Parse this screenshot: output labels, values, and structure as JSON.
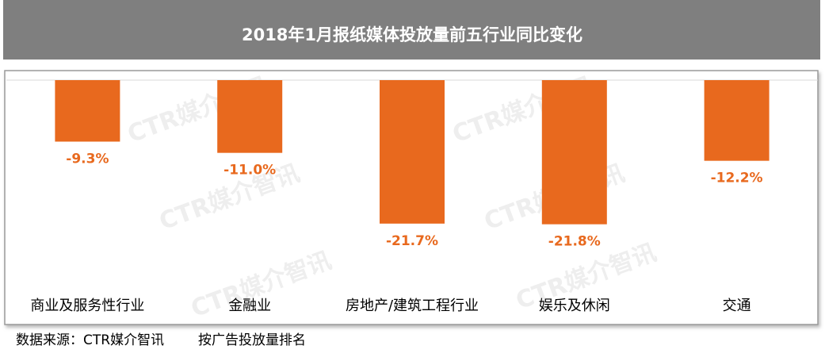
{
  "chart_data": {
    "type": "bar",
    "title": "2018年1月报纸媒体投放量前五行业同比变化",
    "categories": [
      "商业及服务性行业",
      "金融业",
      "房地产/建筑工程行业",
      "娱乐及休闲",
      "交通"
    ],
    "values": [
      -9.3,
      -11.0,
      -21.7,
      -21.8,
      -12.2
    ],
    "value_labels": [
      "-9.3%",
      "-11.0%",
      "-21.7%",
      "-21.8%",
      "-12.2%"
    ],
    "color": "#e8691e",
    "ylim": [
      -30,
      0
    ],
    "watermark": "CTR媒介智讯",
    "source": "数据来源：CTR媒介智讯",
    "note": "按广告投放量排名"
  }
}
